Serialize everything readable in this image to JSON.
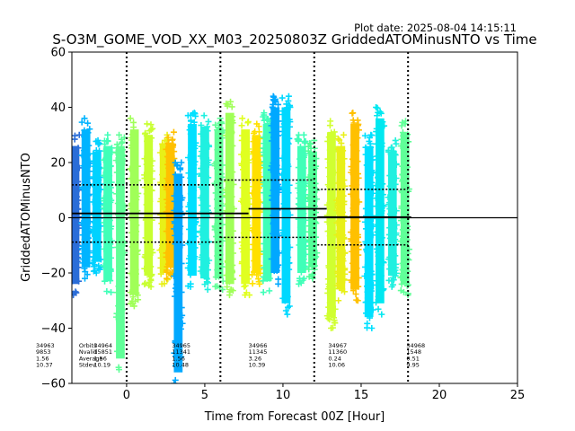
{
  "chart_data": {
    "type": "scatter",
    "title": "S-O3M_GOME_VOD_XX_M03_20250803Z GriddedATOMinusNTO vs Time",
    "plot_date": "Plot date: 2025-08-04 14:15:11",
    "xlabel": "Time from Forecast 00Z [Hour]",
    "ylabel": "GriddedATOMinusNTO",
    "xlim": [
      -3.5,
      25
    ],
    "ylim": [
      -60,
      60
    ],
    "xticks": [
      0,
      5,
      10,
      15,
      20,
      25
    ],
    "yticks": [
      -60,
      -40,
      -20,
      0,
      20,
      40,
      60
    ],
    "grid": false,
    "marker": "+",
    "colormap": "jet",
    "zero_line": 0,
    "forecast_boundaries": [
      0,
      6,
      12,
      18
    ],
    "orbit_bands": [
      {
        "x": -3.3,
        "color": "#2a6dd8",
        "lo": -28,
        "hi": 30
      },
      {
        "x": -2.6,
        "color": "#00b4ff",
        "lo": -22,
        "hi": 36
      },
      {
        "x": -1.9,
        "color": "#00d2ff",
        "lo": -20,
        "hi": 28
      },
      {
        "x": -1.2,
        "color": "#40ffb8",
        "lo": -27,
        "hi": 30
      },
      {
        "x": -0.4,
        "color": "#60ff98",
        "lo": -55,
        "hi": 30
      },
      {
        "x": 0.5,
        "color": "#a0ff58",
        "lo": -32,
        "hi": 36
      },
      {
        "x": 1.4,
        "color": "#c8ff30",
        "lo": -25,
        "hi": 34
      },
      {
        "x": 2.4,
        "color": "#e8f018",
        "lo": -24,
        "hi": 30
      },
      {
        "x": 2.8,
        "color": "#ffc000",
        "lo": -22,
        "hi": 31
      },
      {
        "x": 3.3,
        "color": "#00a8ff",
        "lo": -60,
        "hi": 20
      },
      {
        "x": 4.2,
        "color": "#00e0ff",
        "lo": -25,
        "hi": 38
      },
      {
        "x": 5.0,
        "color": "#20f0e0",
        "lo": -26,
        "hi": 37
      },
      {
        "x": 5.9,
        "color": "#60ff98",
        "lo": -26,
        "hi": 36
      },
      {
        "x": 6.6,
        "color": "#a0ff58",
        "lo": -28,
        "hi": 42
      },
      {
        "x": 7.6,
        "color": "#e0ff20",
        "lo": -28,
        "hi": 36
      },
      {
        "x": 8.3,
        "color": "#ffe000",
        "lo": -24,
        "hi": 34
      },
      {
        "x": 9.0,
        "color": "#40ffb8",
        "lo": -27,
        "hi": 38
      },
      {
        "x": 9.5,
        "color": "#00a8ff",
        "lo": -24,
        "hi": 44
      },
      {
        "x": 10.2,
        "color": "#00d8ff",
        "lo": -35,
        "hi": 44
      },
      {
        "x": 11.2,
        "color": "#40ffb8",
        "lo": -24,
        "hi": 30
      },
      {
        "x": 11.9,
        "color": "#50ff98",
        "lo": -22,
        "hi": 28
      },
      {
        "x": 13.1,
        "color": "#d0ff30",
        "lo": -40,
        "hi": 35
      },
      {
        "x": 13.7,
        "color": "#e8f018",
        "lo": -30,
        "hi": 30
      },
      {
        "x": 14.6,
        "color": "#ffc000",
        "lo": -30,
        "hi": 38
      },
      {
        "x": 15.5,
        "color": "#00e0ff",
        "lo": -40,
        "hi": 30
      },
      {
        "x": 16.2,
        "color": "#00e8f0",
        "lo": -35,
        "hi": 40
      },
      {
        "x": 17.0,
        "color": "#20f0e0",
        "lo": -25,
        "hi": 28
      },
      {
        "x": 17.8,
        "color": "#60ff98",
        "lo": -28,
        "hi": 35
      }
    ],
    "mean_segments": [
      {
        "x": [
          -3.5,
          7.8
        ],
        "y": 1.56
      },
      {
        "x": [
          7.8,
          12.8
        ],
        "y": 3.26
      },
      {
        "x": [
          12.2,
          18.2
        ],
        "y": 0.24
      }
    ],
    "std_segments": [
      {
        "x": [
          -3.5,
          6.0
        ],
        "upper": 11.93,
        "lower": -8.81
      },
      {
        "x": [
          6.0,
          12.0
        ],
        "upper": 13.65,
        "lower": -7.13
      },
      {
        "x": [
          12.2,
          18.0
        ],
        "upper": 10.3,
        "lower": -9.82
      }
    ],
    "stats_row_labels": [
      "Orbits",
      "Nvalid",
      "Average",
      "Stdev"
    ],
    "stats_blocks": [
      {
        "x": -3.4,
        "lines": [
          "34963",
          "9853",
          "1.56",
          "10.37"
        ]
      },
      {
        "x": -2.1,
        "lines": [
          "34964",
          "15851",
          "1.56",
          "10.19"
        ]
      },
      {
        "x": 2.9,
        "lines": [
          "34965",
          "11341",
          "1.56",
          "10.48"
        ]
      },
      {
        "x": 7.8,
        "lines": [
          "34966",
          "11345",
          "3.26",
          "10.39"
        ]
      },
      {
        "x": 12.9,
        "lines": [
          "34967",
          "11360",
          "0.24",
          "10.06"
        ]
      },
      {
        "x": 17.9,
        "lines": [
          "34968",
          "1548",
          "0.51",
          "9.95"
        ]
      }
    ]
  }
}
